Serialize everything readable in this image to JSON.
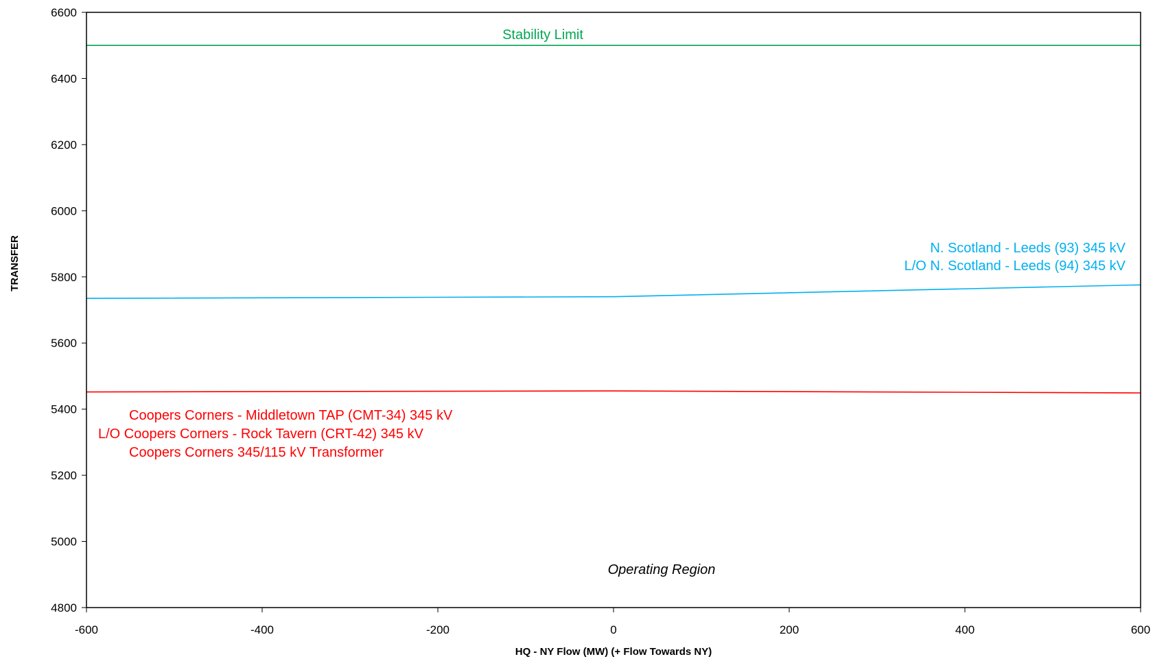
{
  "chart_data": {
    "type": "line",
    "xlabel": "HQ - NY Flow (MW) (+ Flow Towards NY)",
    "ylabel": "TRANSFER",
    "xlim": [
      -600,
      600
    ],
    "ylim": [
      4800,
      6600
    ],
    "x_ticks": [
      "-600",
      "-400",
      "-200",
      "0",
      "200",
      "400",
      "600"
    ],
    "y_ticks": [
      "4800",
      "5000",
      "5200",
      "5400",
      "5600",
      "5800",
      "6000",
      "6200",
      "6400",
      "6600"
    ],
    "grid": false,
    "series": [
      {
        "x": [
          -600,
          0,
          600
        ],
        "y": [
          6500,
          6500,
          6500
        ],
        "color": "#00a651",
        "labels": [
          "Stability Limit"
        ]
      },
      {
        "x": [
          -600,
          0,
          600
        ],
        "y": [
          5735,
          5740,
          5776
        ],
        "color": "#00b0f0",
        "labels": [
          "N. Scotland - Leeds (93)  345 kV",
          "L/O  N. Scotland - Leeds (94)  345 kV"
        ]
      },
      {
        "x": [
          -600,
          0,
          600
        ],
        "y": [
          5452,
          5455,
          5449
        ],
        "color": "#ff0000",
        "labels": [
          "Coopers Corners  - Middletown TAP  (CMT-34)  345  kV",
          "L/O Coopers Corners  - Rock Tavern  (CRT-42)  345  kV",
          "Coopers Corners  345/115  kV Transformer"
        ]
      }
    ],
    "annotations": [
      "Operating Region"
    ]
  }
}
